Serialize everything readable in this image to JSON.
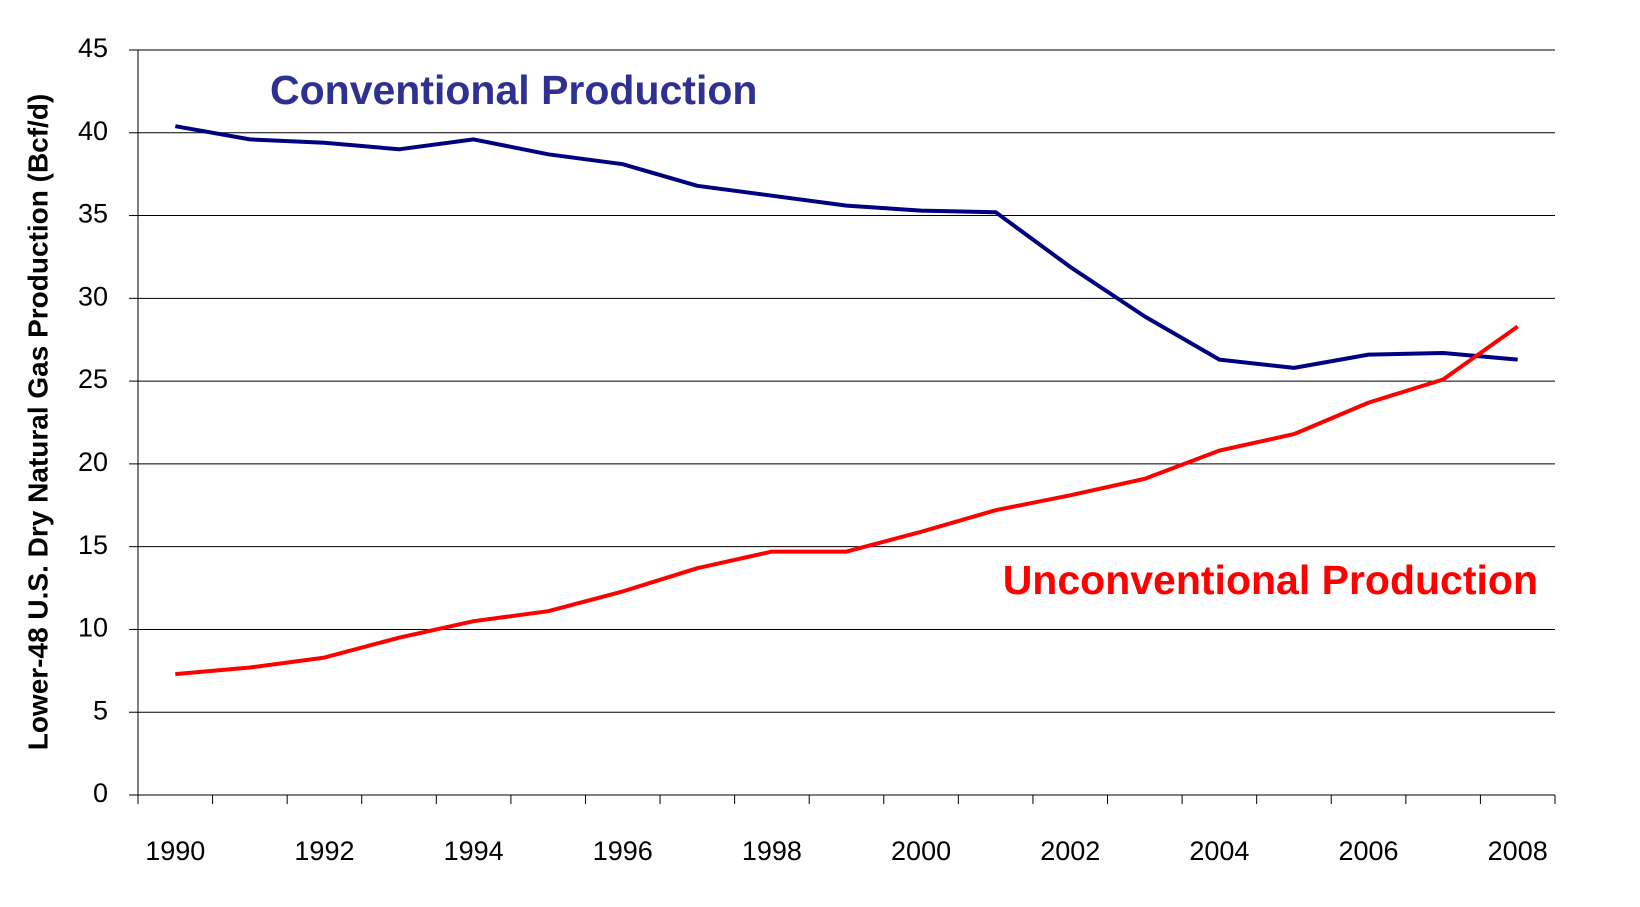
{
  "chart_data": {
    "type": "line",
    "y_label": "Lower-48 U.S. Dry Natural Gas Production (Bcf/d)",
    "categories": [
      "1990",
      null,
      "1992",
      null,
      "1994",
      null,
      "1996",
      null,
      "1998",
      null,
      "2000",
      null,
      "2002",
      null,
      "2004",
      null,
      "2006",
      null,
      "2008"
    ],
    "series": [
      {
        "name": "Conventional Production",
        "color": "#000080",
        "label_color": "#2e3192",
        "values": [
          40.4,
          39.6,
          39.4,
          39.0,
          39.6,
          38.7,
          38.1,
          36.8,
          36.2,
          35.6,
          35.3,
          35.2,
          31.9,
          28.9,
          26.3,
          25.8,
          26.6,
          26.7,
          26.3
        ]
      },
      {
        "name": "Unconventional Production",
        "color": "#ff0000",
        "label_color": "#ff0000",
        "values": [
          7.3,
          7.7,
          8.3,
          9.5,
          10.5,
          11.1,
          12.3,
          13.7,
          14.7,
          14.7,
          15.9,
          17.2,
          18.1,
          19.1,
          20.8,
          21.8,
          23.7,
          25.1,
          28.3
        ]
      }
    ],
    "ylim": [
      0,
      45
    ],
    "yticks": [
      0,
      5,
      10,
      15,
      20,
      25,
      30,
      35,
      40,
      45
    ],
    "grid": true
  }
}
